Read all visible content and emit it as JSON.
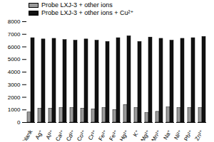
{
  "chart_data": {
    "type": "bar",
    "categories": [
      "blank",
      "Ag⁺",
      "Al³⁺",
      "Ca²⁺",
      "Cd²⁺",
      "Co²⁺",
      "Cr³⁺",
      "Fe²⁺",
      "Fe³⁺",
      "Hg²⁺",
      "K⁺",
      "Mg²⁺",
      "Mn²⁺",
      "Na⁺",
      "Ni²⁺",
      "Pb²⁺",
      "Zn²⁺"
    ],
    "series": [
      {
        "name": "Probe LXJ-3 + other ions",
        "color": "#9a9a9a",
        "values": [
          800,
          1100,
          1100,
          1150,
          1150,
          1100,
          1050,
          1150,
          1000,
          1400,
          1150,
          750,
          850,
          1200,
          1150,
          1150,
          1150
        ]
      },
      {
        "name": "Probe LXJ-3 + other ions + Cu²⁺",
        "color": "#111111",
        "values": [
          6700,
          6600,
          6650,
          6550,
          6500,
          6600,
          6500,
          6400,
          6700,
          6850,
          6400,
          6750,
          6650,
          6500,
          6650,
          6700,
          6800
        ]
      }
    ],
    "ylim": [
      0,
      8000
    ],
    "yticks": [
      0,
      1000,
      2000,
      3000,
      4000,
      5000,
      6000,
      7000,
      8000
    ],
    "legend": "top"
  }
}
